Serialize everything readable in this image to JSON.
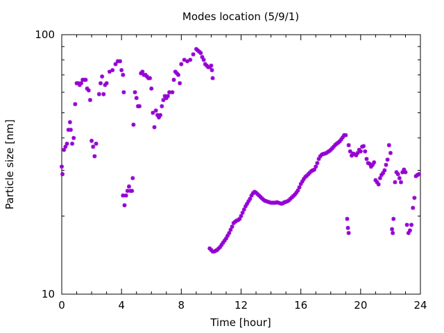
{
  "chart_data": {
    "type": "scatter",
    "title": "Modes location (5/9/1)",
    "xlabel": "Time [hour]",
    "ylabel": "Particle size [nm]",
    "xlim": [
      0,
      24
    ],
    "ylim": [
      10,
      100
    ],
    "yscale": "log",
    "grid": false,
    "legend": "none",
    "marker_color": "#9400d3",
    "marker_symbol": "✱",
    "xticks": [
      "0",
      "4",
      "8",
      "12",
      "16",
      "20",
      "24"
    ],
    "yticks": [
      "10",
      "100"
    ],
    "series": [
      {
        "points": [
          [
            0.0,
            31
          ],
          [
            0.05,
            29
          ],
          [
            0.15,
            36
          ],
          [
            0.25,
            37
          ],
          [
            0.35,
            38
          ],
          [
            0.45,
            43
          ],
          [
            0.55,
            46
          ],
          [
            0.6,
            43
          ],
          [
            0.7,
            38
          ],
          [
            0.8,
            40
          ],
          [
            0.9,
            54
          ],
          [
            1.0,
            65
          ],
          [
            1.1,
            65
          ],
          [
            1.2,
            64
          ],
          [
            1.3,
            65
          ],
          [
            1.4,
            67
          ],
          [
            1.5,
            67
          ],
          [
            1.6,
            67
          ],
          [
            1.7,
            62
          ],
          [
            1.8,
            61
          ],
          [
            1.9,
            56
          ],
          [
            2.0,
            39
          ],
          [
            2.1,
            37
          ],
          [
            2.2,
            34
          ],
          [
            2.3,
            38
          ],
          [
            2.5,
            59
          ],
          [
            2.6,
            65
          ],
          [
            2.7,
            69
          ],
          [
            2.8,
            59
          ],
          [
            2.9,
            64
          ],
          [
            3.0,
            65
          ],
          [
            3.2,
            72
          ],
          [
            3.4,
            73
          ],
          [
            3.6,
            77
          ],
          [
            3.75,
            79
          ],
          [
            3.9,
            79
          ],
          [
            4.0,
            73
          ],
          [
            4.1,
            70
          ],
          [
            4.15,
            60
          ],
          [
            4.1,
            24
          ],
          [
            4.2,
            22
          ],
          [
            4.3,
            24
          ],
          [
            4.4,
            25
          ],
          [
            4.5,
            26
          ],
          [
            4.6,
            25
          ],
          [
            4.7,
            25
          ],
          [
            4.75,
            28
          ],
          [
            4.8,
            45
          ],
          [
            4.9,
            60
          ],
          [
            5.0,
            57
          ],
          [
            5.1,
            53
          ],
          [
            5.2,
            53
          ],
          [
            5.3,
            71
          ],
          [
            5.4,
            72
          ],
          [
            5.5,
            70
          ],
          [
            5.6,
            70
          ],
          [
            5.7,
            69
          ],
          [
            5.8,
            68
          ],
          [
            5.9,
            68
          ],
          [
            6.0,
            62
          ],
          [
            6.1,
            50
          ],
          [
            6.2,
            44
          ],
          [
            6.3,
            51
          ],
          [
            6.4,
            49
          ],
          [
            6.5,
            48
          ],
          [
            6.6,
            49
          ],
          [
            6.7,
            53
          ],
          [
            6.8,
            56
          ],
          [
            6.9,
            58
          ],
          [
            7.0,
            57
          ],
          [
            7.1,
            58
          ],
          [
            7.2,
            60
          ],
          [
            7.4,
            60
          ],
          [
            7.5,
            67
          ],
          [
            7.6,
            72
          ],
          [
            7.7,
            71
          ],
          [
            7.8,
            70
          ],
          [
            7.9,
            65
          ],
          [
            8.0,
            77
          ],
          [
            8.2,
            80
          ],
          [
            8.4,
            79
          ],
          [
            8.6,
            80
          ],
          [
            8.8,
            84
          ],
          [
            9.0,
            88
          ],
          [
            9.1,
            87
          ],
          [
            9.2,
            86
          ],
          [
            9.3,
            85
          ],
          [
            9.4,
            82
          ],
          [
            9.5,
            80
          ],
          [
            9.6,
            77
          ],
          [
            9.7,
            76
          ],
          [
            9.8,
            75
          ],
          [
            9.9,
            75
          ],
          [
            10.0,
            76
          ],
          [
            10.05,
            73
          ],
          [
            10.1,
            68
          ],
          [
            9.9,
            15
          ],
          [
            10.0,
            14.8
          ],
          [
            10.1,
            14.6
          ],
          [
            10.2,
            14.6
          ],
          [
            10.3,
            14.7
          ],
          [
            10.4,
            14.8
          ],
          [
            10.5,
            15.0
          ],
          [
            10.6,
            15.2
          ],
          [
            10.7,
            15.5
          ],
          [
            10.8,
            15.8
          ],
          [
            10.9,
            16.1
          ],
          [
            11.0,
            16.4
          ],
          [
            11.1,
            16.8
          ],
          [
            11.2,
            17.2
          ],
          [
            11.3,
            17.7
          ],
          [
            11.4,
            18.2
          ],
          [
            11.5,
            18.8
          ],
          [
            11.6,
            19.0
          ],
          [
            11.7,
            19.2
          ],
          [
            11.8,
            19.3
          ],
          [
            11.9,
            19.5
          ],
          [
            12.0,
            20.0
          ],
          [
            12.1,
            20.6
          ],
          [
            12.2,
            21.2
          ],
          [
            12.3,
            21.8
          ],
          [
            12.4,
            22.3
          ],
          [
            12.5,
            22.8
          ],
          [
            12.6,
            23.3
          ],
          [
            12.7,
            24.0
          ],
          [
            12.8,
            24.5
          ],
          [
            12.9,
            24.8
          ],
          [
            13.0,
            24.6
          ],
          [
            13.1,
            24.3
          ],
          [
            13.2,
            24.0
          ],
          [
            13.3,
            23.7
          ],
          [
            13.4,
            23.4
          ],
          [
            13.5,
            23.1
          ],
          [
            13.6,
            22.9
          ],
          [
            13.7,
            22.8
          ],
          [
            13.8,
            22.7
          ],
          [
            13.9,
            22.6
          ],
          [
            14.0,
            22.5
          ],
          [
            14.1,
            22.5
          ],
          [
            14.2,
            22.5
          ],
          [
            14.3,
            22.5
          ],
          [
            14.4,
            22.6
          ],
          [
            14.5,
            22.5
          ],
          [
            14.6,
            22.4
          ],
          [
            14.7,
            22.3
          ],
          [
            14.8,
            22.4
          ],
          [
            14.9,
            22.6
          ],
          [
            15.0,
            22.7
          ],
          [
            15.1,
            22.8
          ],
          [
            15.2,
            23.0
          ],
          [
            15.3,
            23.3
          ],
          [
            15.4,
            23.6
          ],
          [
            15.5,
            23.9
          ],
          [
            15.6,
            24.2
          ],
          [
            15.7,
            24.6
          ],
          [
            15.8,
            25.1
          ],
          [
            15.9,
            25.8
          ],
          [
            16.0,
            26.6
          ],
          [
            16.1,
            27.2
          ],
          [
            16.2,
            27.8
          ],
          [
            16.3,
            28.3
          ],
          [
            16.4,
            28.6
          ],
          [
            16.5,
            29.0
          ],
          [
            16.6,
            29.4
          ],
          [
            16.7,
            29.8
          ],
          [
            16.8,
            30.0
          ],
          [
            16.9,
            30.2
          ],
          [
            17.0,
            31.0
          ],
          [
            17.1,
            32.0
          ],
          [
            17.2,
            33.2
          ],
          [
            17.3,
            34.0
          ],
          [
            17.4,
            34.5
          ],
          [
            17.5,
            34.7
          ],
          [
            17.6,
            34.8
          ],
          [
            17.7,
            35.0
          ],
          [
            17.8,
            35.3
          ],
          [
            17.9,
            35.6
          ],
          [
            18.0,
            36.0
          ],
          [
            18.1,
            36.5
          ],
          [
            18.2,
            37.0
          ],
          [
            18.3,
            37.6
          ],
          [
            18.4,
            38.0
          ],
          [
            18.5,
            38.4
          ],
          [
            18.6,
            38.8
          ],
          [
            18.7,
            39.5
          ],
          [
            18.8,
            40.2
          ],
          [
            18.9,
            41.0
          ],
          [
            19.0,
            41.0
          ],
          [
            19.1,
            19.5
          ],
          [
            19.15,
            18.0
          ],
          [
            19.2,
            17.2
          ],
          [
            19.2,
            37.5
          ],
          [
            19.3,
            35.5
          ],
          [
            19.4,
            34.2
          ],
          [
            19.5,
            34.8
          ],
          [
            19.6,
            34.6
          ],
          [
            19.7,
            34.3
          ],
          [
            19.8,
            35.0
          ],
          [
            19.9,
            36.0
          ],
          [
            20.0,
            35.5
          ],
          [
            20.1,
            37.0
          ],
          [
            20.2,
            37.2
          ],
          [
            20.3,
            35.5
          ],
          [
            20.4,
            33.2
          ],
          [
            20.5,
            32.0
          ],
          [
            20.6,
            31.8
          ],
          [
            20.7,
            31.0
          ],
          [
            20.8,
            31.5
          ],
          [
            20.9,
            32.2
          ],
          [
            21.0,
            27.5
          ],
          [
            21.1,
            27.0
          ],
          [
            21.2,
            26.5
          ],
          [
            21.3,
            28.0
          ],
          [
            21.4,
            28.8
          ],
          [
            21.5,
            29.3
          ],
          [
            21.6,
            30.0
          ],
          [
            21.7,
            31.5
          ],
          [
            21.8,
            33.0
          ],
          [
            21.9,
            37.5
          ],
          [
            22.0,
            35.0
          ],
          [
            22.1,
            17.8
          ],
          [
            22.15,
            17.2
          ],
          [
            22.2,
            19.5
          ],
          [
            22.3,
            27.0
          ],
          [
            22.4,
            29.5
          ],
          [
            22.5,
            29.0
          ],
          [
            22.6,
            28.0
          ],
          [
            22.7,
            27.0
          ],
          [
            22.8,
            29.5
          ],
          [
            22.9,
            30.2
          ],
          [
            23.0,
            29.5
          ],
          [
            23.1,
            18.5
          ],
          [
            23.2,
            17.2
          ],
          [
            23.3,
            17.6
          ],
          [
            23.4,
            18.5
          ],
          [
            23.5,
            21.5
          ],
          [
            23.6,
            23.5
          ],
          [
            23.7,
            28.5
          ],
          [
            23.8,
            28.8
          ],
          [
            23.9,
            29.0
          ]
        ]
      }
    ]
  }
}
